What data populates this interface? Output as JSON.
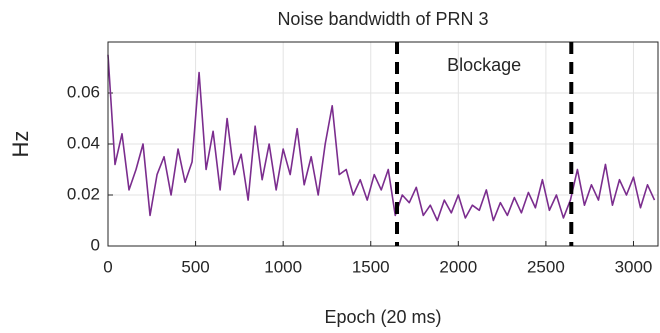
{
  "chart_data": {
    "type": "line",
    "title": "Noise bandwidth of PRN 3",
    "xlabel": "Epoch (20 ms)",
    "ylabel": "Hz",
    "annotation": "Blockage",
    "vlines": [
      1650,
      2645
    ],
    "x": [
      0,
      40,
      80,
      120,
      160,
      200,
      240,
      280,
      320,
      360,
      400,
      440,
      480,
      520,
      560,
      600,
      640,
      680,
      720,
      760,
      800,
      840,
      880,
      920,
      960,
      1000,
      1040,
      1080,
      1120,
      1160,
      1200,
      1240,
      1280,
      1320,
      1360,
      1400,
      1440,
      1480,
      1520,
      1560,
      1600,
      1640,
      1680,
      1720,
      1760,
      1800,
      1840,
      1880,
      1920,
      1960,
      2000,
      2040,
      2080,
      2120,
      2160,
      2200,
      2240,
      2280,
      2320,
      2360,
      2400,
      2440,
      2480,
      2520,
      2560,
      2600,
      2640,
      2680,
      2720,
      2760,
      2800,
      2840,
      2880,
      2920,
      2960,
      3000,
      3040,
      3080,
      3120
    ],
    "series": [
      {
        "name": "PRN 3",
        "color": "#7b2d8e",
        "values": [
          0.075,
          0.032,
          0.044,
          0.022,
          0.03,
          0.04,
          0.012,
          0.028,
          0.035,
          0.02,
          0.038,
          0.025,
          0.033,
          0.068,
          0.03,
          0.045,
          0.022,
          0.05,
          0.028,
          0.036,
          0.018,
          0.047,
          0.026,
          0.04,
          0.022,
          0.038,
          0.028,
          0.046,
          0.024,
          0.035,
          0.02,
          0.04,
          0.055,
          0.028,
          0.03,
          0.02,
          0.026,
          0.018,
          0.028,
          0.022,
          0.03,
          0.012,
          0.02,
          0.017,
          0.023,
          0.012,
          0.016,
          0.01,
          0.018,
          0.013,
          0.02,
          0.011,
          0.016,
          0.014,
          0.022,
          0.01,
          0.017,
          0.012,
          0.019,
          0.013,
          0.021,
          0.015,
          0.026,
          0.014,
          0.02,
          0.011,
          0.018,
          0.03,
          0.016,
          0.024,
          0.018,
          0.032,
          0.016,
          0.026,
          0.02,
          0.027,
          0.015,
          0.024,
          0.018
        ]
      }
    ],
    "xlim": [
      0,
      3140
    ],
    "ylim": [
      0,
      0.08
    ],
    "xticks": [
      0,
      500,
      1000,
      1500,
      2000,
      2500,
      3000
    ],
    "yticks": [
      0,
      0.02,
      0.04,
      0.06
    ],
    "grid": true
  }
}
